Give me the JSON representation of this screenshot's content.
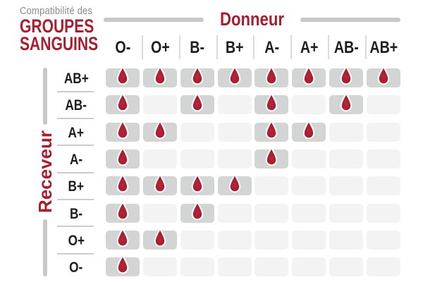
{
  "title": {
    "line1": "Compatibilité des",
    "line2": "GROUPES",
    "line3": "SANGUINS"
  },
  "chart_data": {
    "type": "table",
    "title": "Compatibilité des GROUPES SANGUINS",
    "columns_label": "Donneur",
    "rows_label": "Receveur",
    "donor_types": [
      "O-",
      "O+",
      "B-",
      "B+",
      "A-",
      "A+",
      "AB-",
      "AB+"
    ],
    "receiver_types": [
      "AB+",
      "AB-",
      "A+",
      "A-",
      "B+",
      "B-",
      "O+",
      "O-"
    ],
    "compatibility": [
      [
        1,
        1,
        1,
        1,
        1,
        1,
        1,
        1
      ],
      [
        1,
        0,
        1,
        0,
        1,
        0,
        1,
        0
      ],
      [
        1,
        1,
        0,
        0,
        1,
        1,
        0,
        0
      ],
      [
        1,
        0,
        0,
        0,
        1,
        0,
        0,
        0
      ],
      [
        1,
        1,
        1,
        1,
        0,
        0,
        0,
        0
      ],
      [
        1,
        0,
        1,
        0,
        0,
        0,
        0,
        0
      ],
      [
        1,
        1,
        0,
        0,
        0,
        0,
        0,
        0
      ],
      [
        1,
        0,
        0,
        0,
        0,
        0,
        0,
        0
      ]
    ],
    "cell_marker": "blood-drop-icon"
  },
  "colors": {
    "accent_red": "#A61E2F",
    "drop_red": "#A51D30",
    "cell_filled": "#D3D4D4",
    "cell_empty": "#F3F3F3",
    "separator": "#CCCCCC",
    "bar_gray": "#C7C8C9",
    "text_dark": "#1D1D1B",
    "text_gray": "#8A8A8A"
  }
}
